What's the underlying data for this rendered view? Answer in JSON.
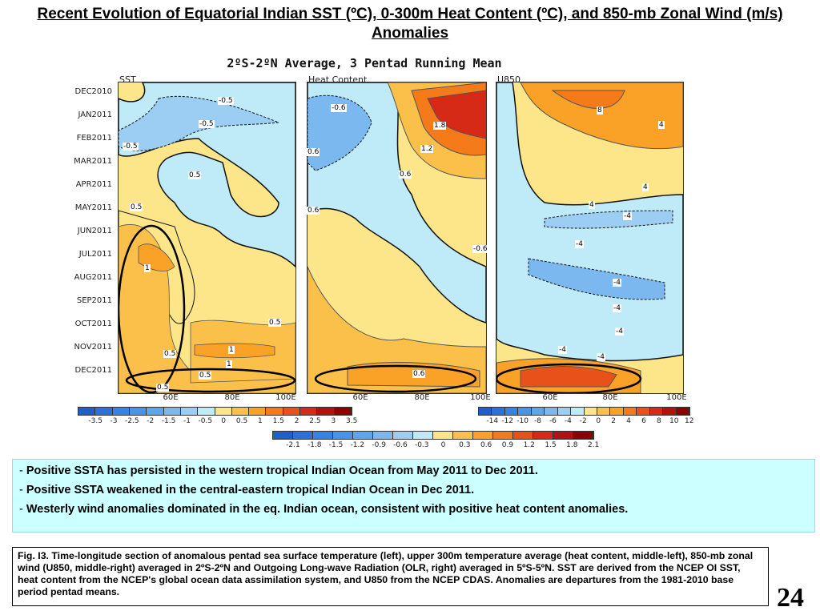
{
  "title": "Recent Evolution of Equatorial Indian SST (ºC), 0-300m Heat Content (ºC), and 850-mb Zonal Wind (m/s) Anomalies",
  "figure": {
    "title": "2ºS-2ºN Average, 3 Pentad Running Mean",
    "panels": [
      {
        "name": "SST",
        "xticks": [
          "60E",
          "80E",
          "100E"
        ],
        "contour_labels": [
          "-0.5",
          "-0.5",
          "-0.5",
          "0.5",
          "0.5",
          "1",
          "0.5",
          "1",
          "1",
          "0.5",
          "0.5",
          "0.5"
        ]
      },
      {
        "name": "Heat Content",
        "xticks": [
          "60E",
          "80E",
          "100E"
        ],
        "contour_labels": [
          "-0.6",
          "0.6",
          "1.8",
          "1.2",
          "0.6",
          "0.6",
          "-0.6",
          "0.6"
        ]
      },
      {
        "name": "U850",
        "xticks": [
          "60E",
          "80E",
          "100E"
        ],
        "contour_labels": [
          "8",
          "4",
          "4",
          "4",
          "-4",
          "-4",
          "-4",
          "-4",
          "-4",
          "-4",
          "-4"
        ]
      }
    ],
    "yticks": [
      "DEC2010",
      "JAN2011",
      "FEB2011",
      "MAR2011",
      "APR2011",
      "MAY2011",
      "JUN2011",
      "JUL2011",
      "AUG2011",
      "SEP2011",
      "OCT2011",
      "NOV2011",
      "DEC2011"
    ],
    "colorbars": {
      "sst": [
        "-3.5",
        "-3",
        "-2.5",
        "-2",
        "-1.5",
        "-1",
        "-0.5",
        "0",
        "0.5",
        "1",
        "1.5",
        "2",
        "2.5",
        "3",
        "3.5"
      ],
      "u850": [
        "-14",
        "-12",
        "-10",
        "-8",
        "-6",
        "-4",
        "-2",
        "0",
        "2",
        "4",
        "6",
        "8",
        "10",
        "12"
      ],
      "hc": [
        "-2.1",
        "-1.8",
        "-1.5",
        "-1.2",
        "-0.9",
        "-0.6",
        "-0.3",
        "0",
        "0.3",
        "0.6",
        "0.9",
        "1.2",
        "1.5",
        "1.8",
        "2.1"
      ]
    },
    "colors": {
      "neg": [
        "#1e5fc8",
        "#2a72d8",
        "#3584e4",
        "#4795e8",
        "#5ca6ec",
        "#7ab8ef",
        "#9ccdf3",
        "#bfeaf7"
      ],
      "pos": [
        "#fde68a",
        "#fbc04a",
        "#f9a227",
        "#f47a1a",
        "#e8521a",
        "#d62a16",
        "#b31010",
        "#8c0000"
      ]
    }
  },
  "bullets": [
    "Positive SSTA has persisted in the western tropical Indian Ocean from May 2011 to Dec 2011.",
    "Positive SSTA weakened in the central-eastern tropical Indian Ocean in Dec 2011.",
    "Westerly wind anomalies dominated in the eq. Indian ocean, consistent with positive heat content anomalies."
  ],
  "bullet_prefix": "- ",
  "caption": "Fig. I3. Time-longitude section of anomalous pentad sea surface temperature (left), upper 300m temperature average (heat content, middle-left), 850-mb zonal wind (U850, middle-right) averaged in 2ºS-2ºN and Outgoing Long-wave Radiation (OLR, right) averaged in 5ºS-5ºN. SST are derived from the NCEP OI SST, heat content from the NCEP's global ocean data assimilation system, and U850 from the NCEP CDAS.  Anomalies are departures from the 1981-2010 base period pentad means.",
  "page_number": "24"
}
